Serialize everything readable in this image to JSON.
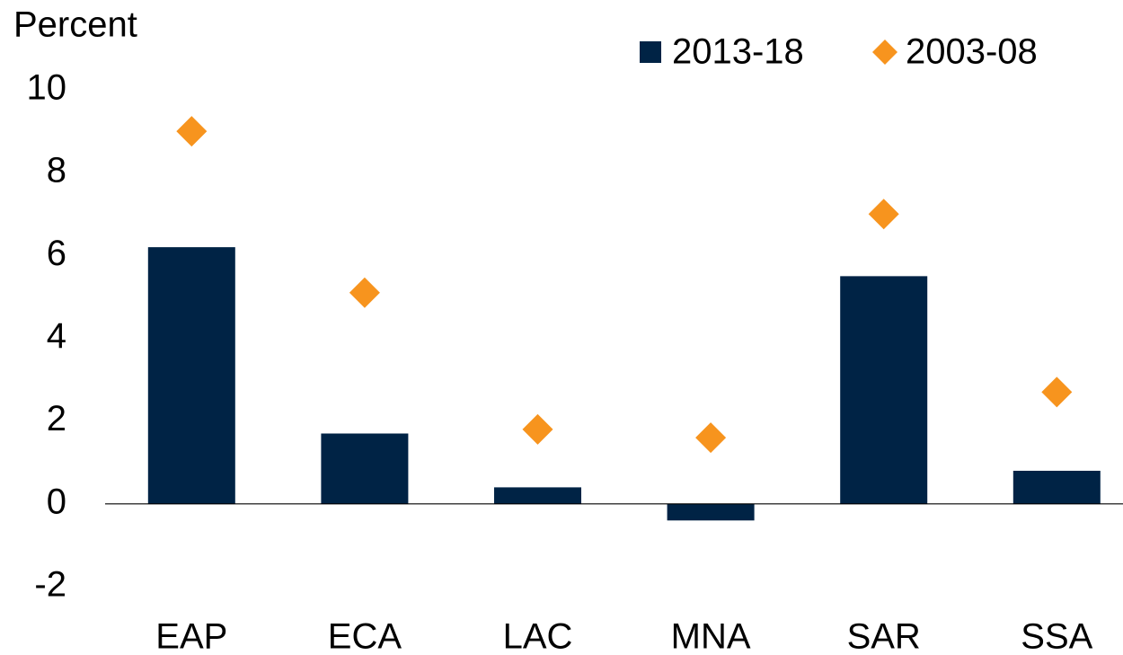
{
  "chart_data": {
    "type": "bar",
    "y_axis_label": "Percent",
    "categories": [
      "EAP",
      "ECA",
      "LAC",
      "MNA",
      "SAR",
      "SSA"
    ],
    "series": [
      {
        "name": "2013-18",
        "type": "bar",
        "color": "#002345",
        "values": [
          6.2,
          1.7,
          0.4,
          -0.4,
          5.5,
          0.8
        ]
      },
      {
        "name": "2003-08",
        "type": "diamond",
        "color": "#f7941e",
        "values": [
          9.0,
          5.1,
          1.8,
          1.6,
          7.0,
          2.7
        ]
      }
    ],
    "ylim": [
      -2,
      10
    ],
    "yticks": [
      -2,
      0,
      2,
      4,
      6,
      8,
      10
    ],
    "grid": false,
    "legend": "top-right"
  }
}
